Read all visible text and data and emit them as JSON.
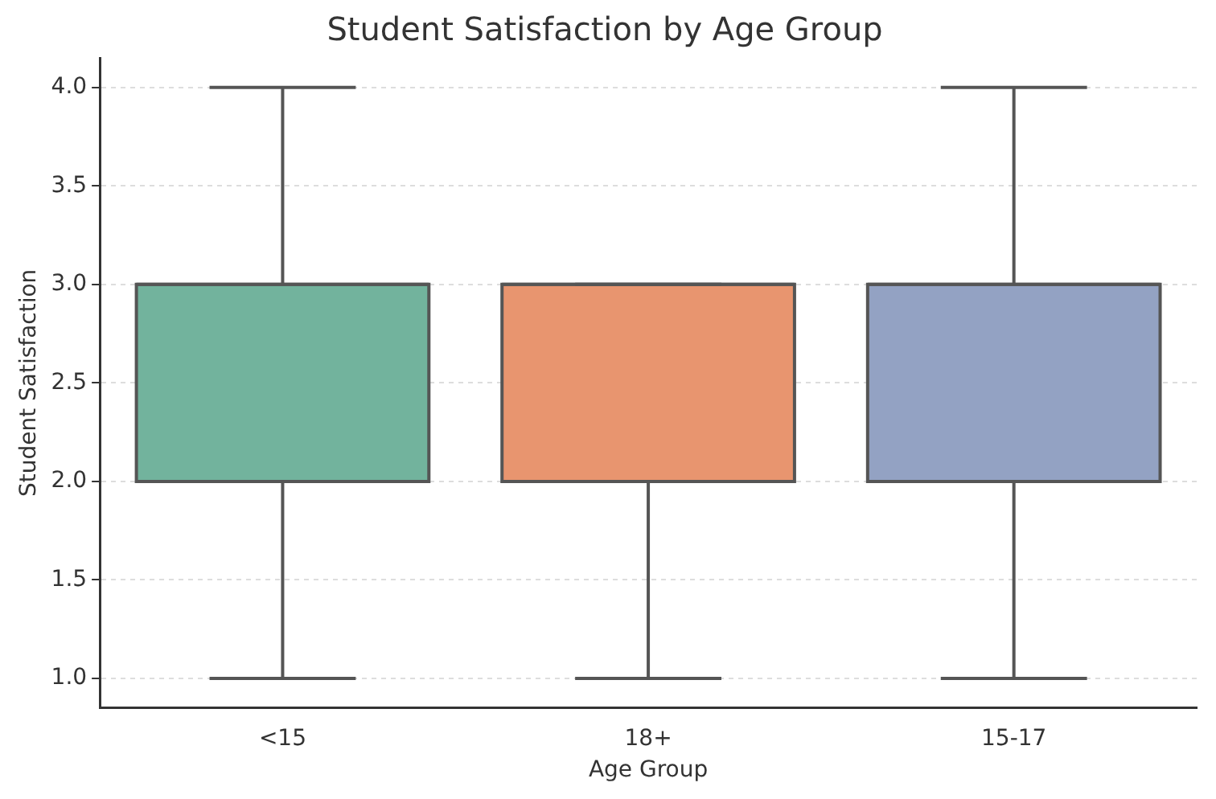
{
  "chart_data": {
    "type": "box",
    "title": "Student Satisfaction by Age Group",
    "xlabel": "Age Group",
    "ylabel": "Student Satisfaction",
    "categories": [
      "<15",
      "18+",
      "15-17"
    ],
    "colors": [
      "#72b39d",
      "#e8956f",
      "#93a2c3"
    ],
    "boxes": [
      {
        "low": 1,
        "q1": 2,
        "median": 3,
        "q3": 3,
        "high": 4
      },
      {
        "low": 1,
        "q1": 2,
        "median": 3,
        "q3": 3,
        "high": 3
      },
      {
        "low": 1,
        "q1": 2,
        "median": 3,
        "q3": 3,
        "high": 4
      }
    ],
    "ylim": [
      0.85,
      4.15
    ],
    "yticks": [
      {
        "value": 1,
        "label": "1.0"
      },
      {
        "value": 1.5,
        "label": "1.5"
      },
      {
        "value": 2,
        "label": "2.0"
      },
      {
        "value": 2.5,
        "label": "2.5"
      },
      {
        "value": 3,
        "label": "3.0"
      },
      {
        "value": 3.5,
        "label": "3.5"
      },
      {
        "value": 4,
        "label": "4.0"
      }
    ],
    "grid": "y"
  }
}
